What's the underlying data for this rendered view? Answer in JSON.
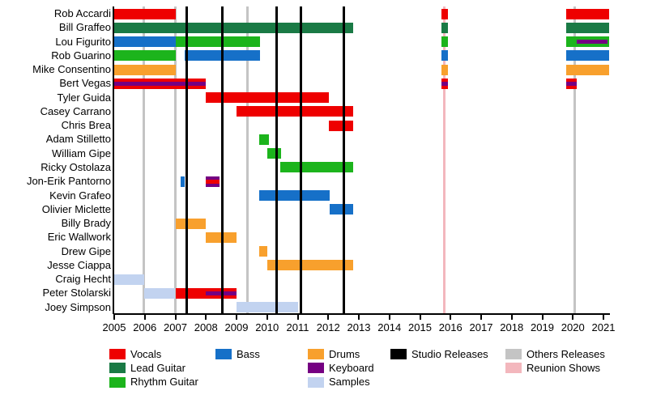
{
  "chart_data": {
    "type": "bar",
    "subtype": "gantt-member-timeline",
    "title": "",
    "xlabel": "",
    "ylabel": "",
    "x_range": [
      2005,
      2021.2
    ],
    "x_ticks": [
      2005,
      2006,
      2007,
      2008,
      2009,
      2010,
      2011,
      2012,
      2013,
      2014,
      2015,
      2016,
      2017,
      2018,
      2019,
      2020,
      2021
    ],
    "grid": false,
    "colors": {
      "vocals": "#ee0000",
      "lead_guitar": "#1a7a45",
      "rhythm_guitar": "#1cb41c",
      "bass": "#1670c8",
      "drums": "#f8a02d",
      "keyboard": "#750082",
      "samples": "#c2d3f0",
      "studio_release": "#000000",
      "others_release": "#c4c4c4",
      "reunion_show": "#f3b7bd"
    },
    "members": [
      {
        "name": "Rob Accardi",
        "segments": [
          {
            "start": 2005.0,
            "end": 2007.0,
            "role": "vocals"
          },
          {
            "start": 2015.7,
            "end": 2015.92,
            "role": "vocals"
          },
          {
            "start": 2019.78,
            "end": 2021.18,
            "role": "vocals"
          }
        ]
      },
      {
        "name": "Bill Graffeo",
        "segments": [
          {
            "start": 2005.0,
            "end": 2012.81,
            "role": "lead_guitar"
          },
          {
            "start": 2015.7,
            "end": 2015.92,
            "role": "lead_guitar"
          },
          {
            "start": 2019.78,
            "end": 2021.18,
            "role": "lead_guitar"
          }
        ]
      },
      {
        "name": "Lou Figurito",
        "segments": [
          {
            "start": 2005.0,
            "end": 2007.0,
            "role": "bass"
          },
          {
            "start": 2007.0,
            "end": 2009.78,
            "role": "rhythm_guitar"
          },
          {
            "start": 2015.7,
            "end": 2015.92,
            "role": "rhythm_guitar"
          },
          {
            "start": 2019.78,
            "end": 2021.18,
            "role": "rhythm_guitar",
            "stripe": {
              "role": "keyboard",
              "start": 2020.12,
              "end": 2021.13
            }
          }
        ]
      },
      {
        "name": "Rob Guarino",
        "segments": [
          {
            "start": 2005.0,
            "end": 2007.0,
            "role": "rhythm_guitar"
          },
          {
            "start": 2007.31,
            "end": 2009.78,
            "role": "bass"
          },
          {
            "start": 2015.7,
            "end": 2015.92,
            "role": "bass"
          },
          {
            "start": 2019.78,
            "end": 2021.18,
            "role": "bass"
          }
        ]
      },
      {
        "name": "Mike Consentino",
        "segments": [
          {
            "start": 2005.0,
            "end": 2007.0,
            "role": "drums"
          },
          {
            "start": 2015.7,
            "end": 2015.92,
            "role": "drums"
          },
          {
            "start": 2019.78,
            "end": 2021.18,
            "role": "drums"
          }
        ]
      },
      {
        "name": "Bert Vegas",
        "segments": [
          {
            "start": 2005.0,
            "end": 2008.0,
            "role": "vocals",
            "stripe": {
              "role": "keyboard",
              "start": 2005.0,
              "end": 2008.0
            }
          },
          {
            "start": 2015.7,
            "end": 2015.92,
            "role": "vocals",
            "stripe": {
              "role": "keyboard",
              "start": 2015.7,
              "end": 2015.92
            }
          },
          {
            "start": 2019.78,
            "end": 2020.12,
            "role": "vocals",
            "stripe": {
              "role": "keyboard",
              "start": 2019.78,
              "end": 2020.12
            }
          }
        ]
      },
      {
        "name": "Tyler Guida",
        "segments": [
          {
            "start": 2008.0,
            "end": 2012.02,
            "role": "vocals"
          }
        ]
      },
      {
        "name": "Casey Carrano",
        "segments": [
          {
            "start": 2009.0,
            "end": 2012.81,
            "role": "vocals"
          }
        ]
      },
      {
        "name": "Chris Brea",
        "segments": [
          {
            "start": 2012.02,
            "end": 2012.81,
            "role": "vocals"
          }
        ]
      },
      {
        "name": "Adam Stilletto",
        "segments": [
          {
            "start": 2009.74,
            "end": 2010.05,
            "role": "rhythm_guitar"
          }
        ]
      },
      {
        "name": "William Gipe",
        "segments": [
          {
            "start": 2010.0,
            "end": 2010.45,
            "role": "rhythm_guitar"
          }
        ]
      },
      {
        "name": "Ricky Ostolaza",
        "segments": [
          {
            "start": 2010.43,
            "end": 2012.81,
            "role": "rhythm_guitar"
          }
        ]
      },
      {
        "name": "Jon-Erik Pantorno",
        "segments": [
          {
            "start": 2007.16,
            "end": 2007.31,
            "role": "bass"
          },
          {
            "start": 2008.0,
            "end": 2008.44,
            "role": "keyboard",
            "stripe": {
              "role": "vocals",
              "start": 2008.0,
              "end": 2008.44
            }
          }
        ]
      },
      {
        "name": "Kevin Grafeo",
        "segments": [
          {
            "start": 2009.74,
            "end": 2012.04,
            "role": "bass"
          }
        ]
      },
      {
        "name": "Olivier Miclette",
        "segments": [
          {
            "start": 2012.04,
            "end": 2012.81,
            "role": "bass"
          }
        ]
      },
      {
        "name": "Billy Brady",
        "segments": [
          {
            "start": 2007.0,
            "end": 2008.0,
            "role": "drums"
          }
        ]
      },
      {
        "name": "Eric Wallwork",
        "segments": [
          {
            "start": 2008.0,
            "end": 2009.0,
            "role": "drums"
          }
        ]
      },
      {
        "name": "Drew Gipe",
        "segments": [
          {
            "start": 2009.74,
            "end": 2010.02,
            "role": "drums"
          }
        ]
      },
      {
        "name": "Jesse Ciappa",
        "segments": [
          {
            "start": 2010.0,
            "end": 2012.81,
            "role": "drums"
          }
        ]
      },
      {
        "name": "Craig Hecht",
        "segments": [
          {
            "start": 2005.0,
            "end": 2005.97,
            "role": "samples"
          }
        ]
      },
      {
        "name": "Peter Stolarski",
        "segments": [
          {
            "start": 2005.97,
            "end": 2007.0,
            "role": "samples"
          },
          {
            "start": 2007.0,
            "end": 2009.0,
            "role": "vocals",
            "stripe": {
              "role": "keyboard",
              "start": 2008.0,
              "end": 2009.0
            }
          }
        ]
      },
      {
        "name": "Joey Simpson",
        "segments": [
          {
            "start": 2009.0,
            "end": 2011.0,
            "role": "samples"
          }
        ]
      }
    ],
    "events": [
      {
        "x": 2005.97,
        "type": "others_release"
      },
      {
        "x": 2007.01,
        "type": "others_release"
      },
      {
        "x": 2007.37,
        "type": "studio_release"
      },
      {
        "x": 2008.54,
        "type": "studio_release"
      },
      {
        "x": 2009.37,
        "type": "others_release"
      },
      {
        "x": 2010.3,
        "type": "studio_release"
      },
      {
        "x": 2011.11,
        "type": "studio_release"
      },
      {
        "x": 2012.52,
        "type": "studio_release"
      },
      {
        "x": 2015.8,
        "type": "reunion_show"
      },
      {
        "x": 2020.05,
        "type": "others_release"
      }
    ],
    "legend_position": "bottom"
  },
  "legend": {
    "items": [
      {
        "label": "Vocals",
        "role": "vocals",
        "col": 0,
        "row": 0
      },
      {
        "label": "Lead Guitar",
        "role": "lead_guitar",
        "col": 0,
        "row": 1
      },
      {
        "label": "Rhythm Guitar",
        "role": "rhythm_guitar",
        "col": 0,
        "row": 2
      },
      {
        "label": "Bass",
        "role": "bass",
        "col": 1,
        "row": 0
      },
      {
        "label": "Drums",
        "role": "drums",
        "col": 2,
        "row": 0
      },
      {
        "label": "Keyboard",
        "role": "keyboard",
        "col": 2,
        "row": 1
      },
      {
        "label": "Samples",
        "role": "samples",
        "col": 2,
        "row": 2
      },
      {
        "label": "Studio Releases",
        "role": "studio_release",
        "col": 3,
        "row": 0
      },
      {
        "label": "Others Releases",
        "role": "others_release",
        "col": 4,
        "row": 0
      },
      {
        "label": "Reunion Shows",
        "role": "reunion_show",
        "col": 4,
        "row": 1
      }
    ]
  }
}
